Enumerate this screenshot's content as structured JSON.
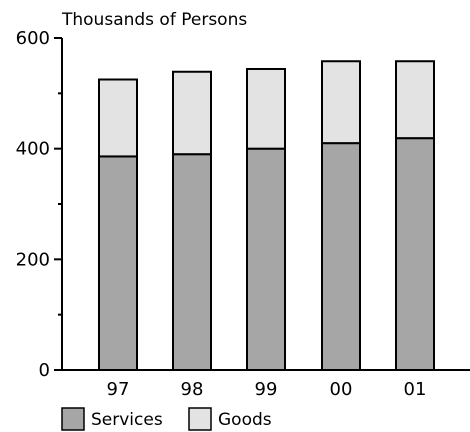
{
  "chart_data": {
    "type": "bar",
    "stacked": true,
    "ylabel": "Thousands of Persons",
    "categories": [
      "97",
      "98",
      "99",
      "00",
      "01"
    ],
    "ylim": [
      0,
      600
    ],
    "yticks": [
      "0",
      "200",
      "400",
      "600"
    ],
    "grid": false,
    "legend_position": "bottom-left",
    "series": [
      {
        "name": "Services",
        "values": [
          386,
          390,
          400,
          410,
          419
        ],
        "color": "#a6a6a6"
      },
      {
        "name": "Goods",
        "values": [
          139,
          149,
          144,
          148,
          139
        ],
        "color": "#e3e3e3"
      }
    ]
  }
}
